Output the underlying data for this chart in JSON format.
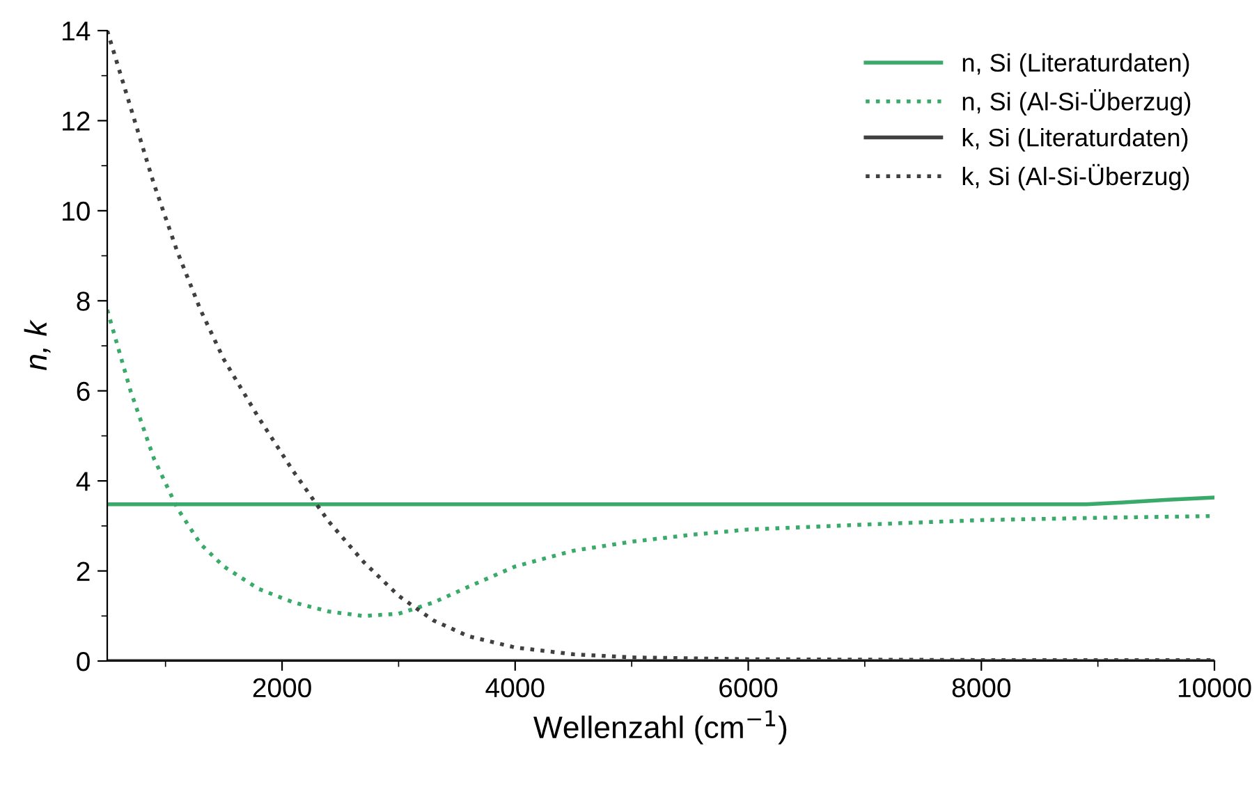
{
  "chart_data": {
    "type": "line",
    "xlabel": "Wellenzahl (cm$^{−1}$)",
    "ylabel": "n, k",
    "xlim": [
      500,
      10000
    ],
    "ylim": [
      0,
      14
    ],
    "xticks": [
      {
        "value": 1000,
        "label": null
      },
      2000,
      {
        "value": 3000,
        "label": null
      },
      4000,
      {
        "value": 5000,
        "label": null
      },
      6000,
      {
        "value": 7000,
        "label": null
      },
      8000,
      {
        "value": 9000,
        "label": null
      },
      10000
    ],
    "yticks": [
      0,
      {
        "value": 1,
        "label": null
      },
      2,
      {
        "value": 3,
        "label": null
      },
      4,
      {
        "value": 5,
        "label": null
      },
      6,
      {
        "value": 7,
        "label": null
      },
      8,
      {
        "value": 9,
        "label": null
      },
      10,
      {
        "value": 11,
        "label": null
      },
      12,
      {
        "value": 13,
        "label": null
      },
      14
    ],
    "grid": false,
    "legend": "top right",
    "marker": "none",
    "series": [
      {
        "name": "n, Si (Literaturdaten)",
        "color": "#3aaa6a",
        "line_style": "solid",
        "x": [
          500,
          8900,
          9200,
          9600,
          10000
        ],
        "values": [
          3.48,
          3.48,
          3.52,
          3.58,
          3.63
        ]
      },
      {
        "name": "n, Si (Al-Si-Überzug)",
        "color": "#3aaa6a",
        "line_style": "dotted",
        "x": [
          500,
          700,
          900,
          1100,
          1300,
          1500,
          1800,
          2100,
          2400,
          2700,
          3000,
          3300,
          3600,
          4000,
          4500,
          5000,
          5500,
          6000,
          7000,
          8000,
          9000,
          10000
        ],
        "values": [
          7.8,
          6.0,
          4.5,
          3.4,
          2.6,
          2.1,
          1.6,
          1.3,
          1.1,
          1.0,
          1.05,
          1.3,
          1.65,
          2.1,
          2.45,
          2.65,
          2.8,
          2.92,
          3.03,
          3.13,
          3.18,
          3.22
        ]
      },
      {
        "name": "k, Si (Literaturdaten)",
        "color": "#404040",
        "line_style": "solid",
        "x": [
          500,
          10000
        ],
        "values": [
          0,
          0
        ]
      },
      {
        "name": "k, Si (Al-Si-Überzug)",
        "color": "#404040",
        "line_style": "dotted",
        "x": [
          500,
          700,
          900,
          1100,
          1300,
          1500,
          1800,
          2100,
          2400,
          2700,
          3000,
          3300,
          3600,
          4000,
          4500,
          5000,
          6000,
          8000,
          10000
        ],
        "values": [
          14.0,
          12.3,
          10.6,
          9.1,
          7.8,
          6.7,
          5.4,
          4.2,
          3.1,
          2.2,
          1.45,
          0.9,
          0.55,
          0.3,
          0.15,
          0.08,
          0.04,
          0.02,
          0.02
        ]
      }
    ]
  }
}
